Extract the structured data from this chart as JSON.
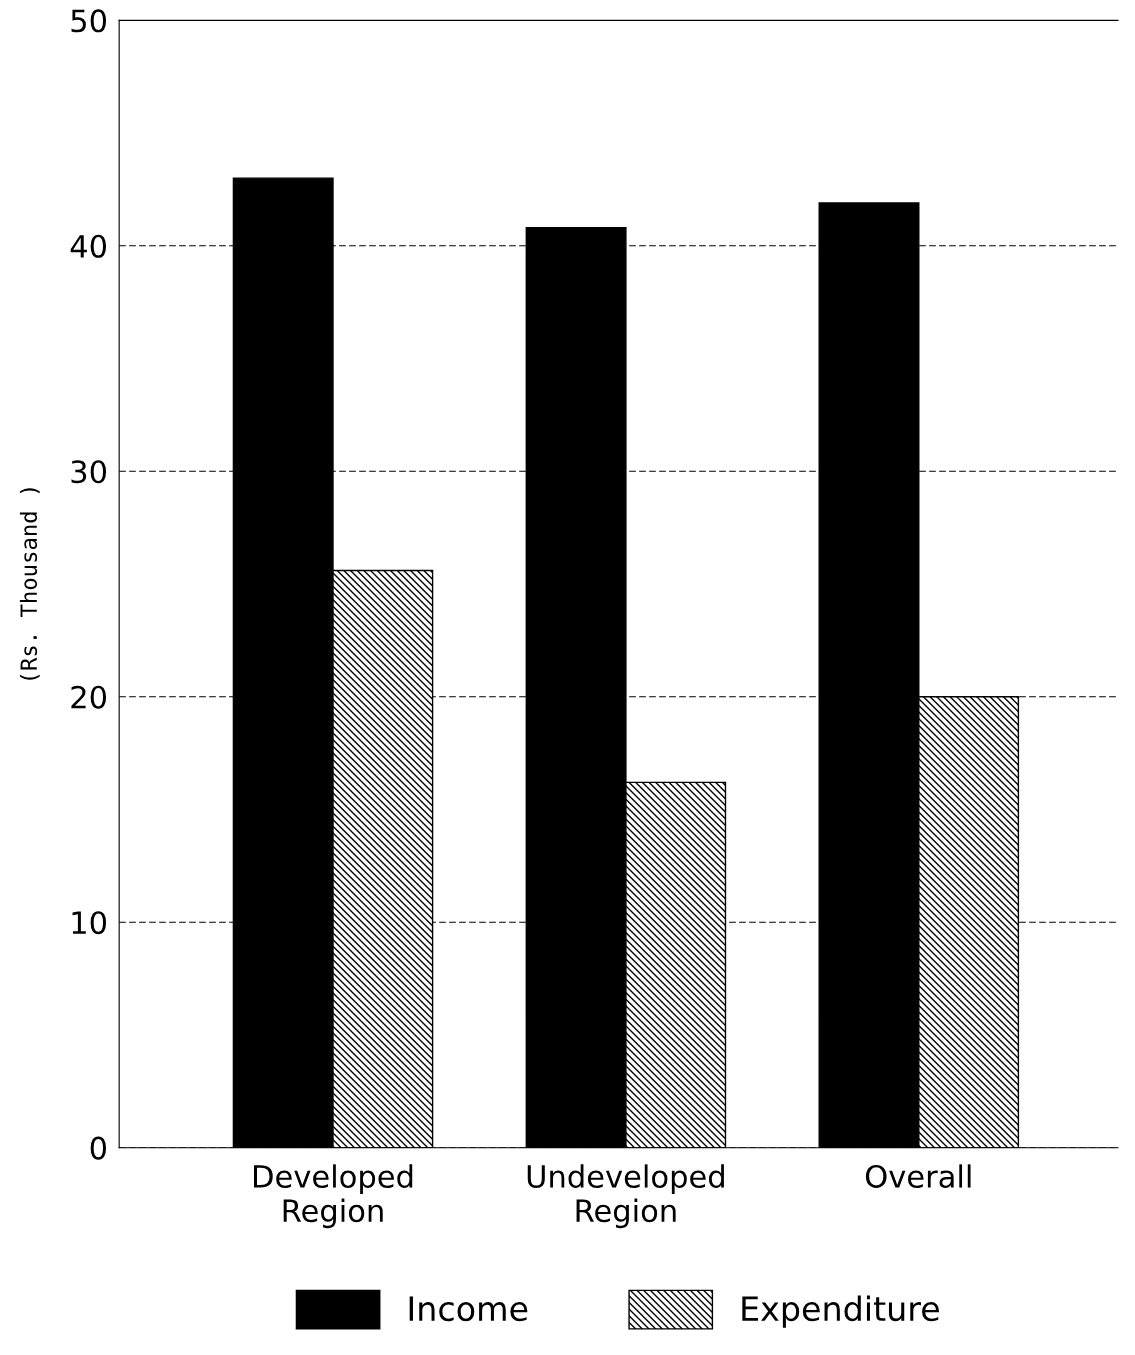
{
  "chart_data": {
    "type": "bar",
    "ylabel": "(Rs. Thousand )",
    "categories": [
      "Developed\nRegion",
      "Undeveloped\nRegion",
      "Overall"
    ],
    "series": [
      {
        "name": "Income",
        "color": "#000000",
        "values": [
          43.0,
          40.8,
          41.9
        ]
      },
      {
        "name": "Expenditure",
        "color": "#000000",
        "values": [
          25.6,
          16.2,
          20.0
        ]
      }
    ],
    "ylim": [
      0,
      50
    ],
    "yticks": [
      0,
      10,
      20,
      30,
      40,
      50
    ],
    "grid": "y",
    "legend": "bottom"
  }
}
